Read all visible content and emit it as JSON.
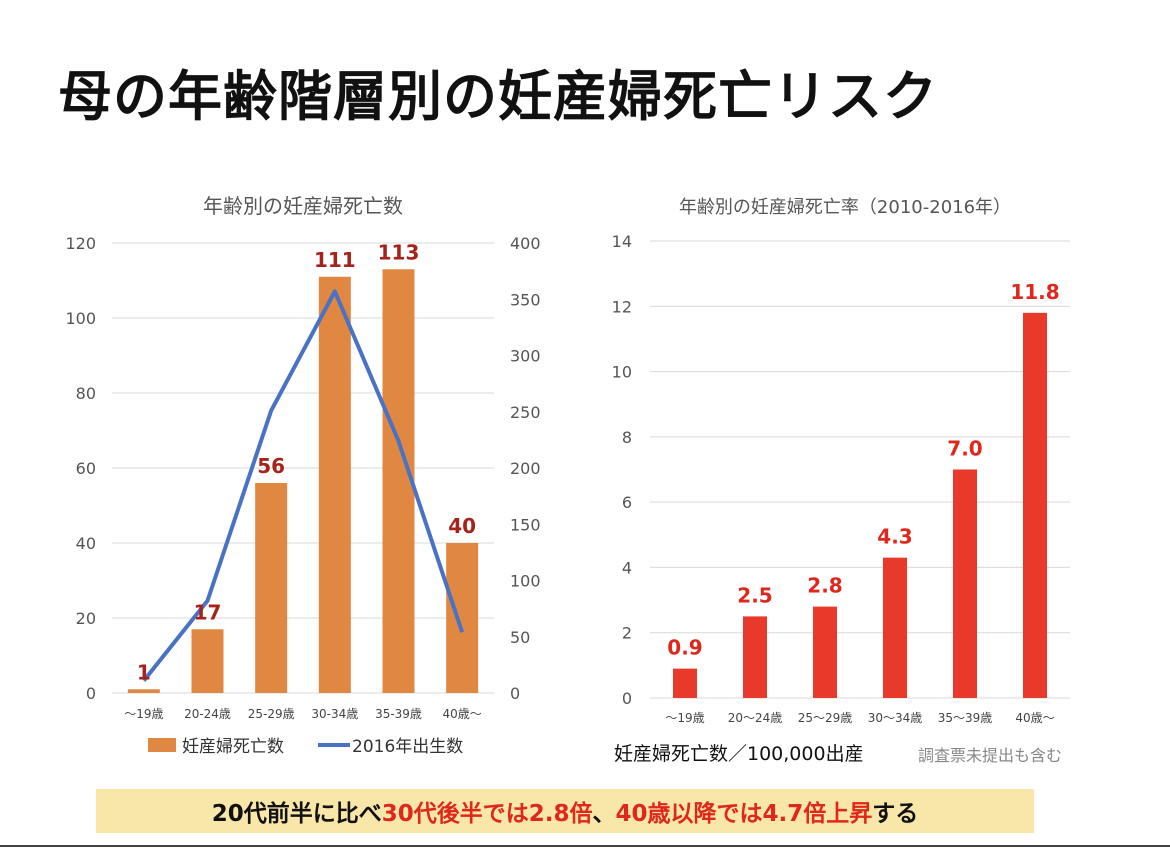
{
  "page": {
    "title": "母の年齢階層別の妊産婦死亡リスク",
    "summary": {
      "part1": "20代前半に比べ",
      "part2": "30代後半では2.8倍",
      "part3": "、",
      "part4": "40歳以降では4.7倍上昇",
      "part5": "する"
    }
  },
  "colors": {
    "bar_left": "#e08841",
    "line_left": "#4a72c4",
    "bar_right": "#e8392a",
    "label_left": "#a5231b",
    "label_right": "#e0271b",
    "summary_bg": "#f8e7a8"
  },
  "chart_data": [
    {
      "type": "bar+line",
      "title": "年齢別の妊産婦死亡数",
      "categories": [
        "〜19歳",
        "20-24歳",
        "25-29歳",
        "30-34歳",
        "35-39歳",
        "40歳〜"
      ],
      "series": [
        {
          "name": "妊産婦死亡数",
          "type": "bar",
          "axis": "left",
          "values": [
            1,
            17,
            56,
            111,
            113,
            40
          ],
          "labels": [
            "1",
            "17",
            "56",
            "111",
            "113",
            "40"
          ]
        },
        {
          "name": "2016年出生数",
          "type": "line",
          "axis": "right",
          "values": [
            11,
            82,
            251,
            357,
            224,
            54
          ]
        }
      ],
      "y_left": {
        "min": 0,
        "max": 120,
        "ticks": [
          "0",
          "20",
          "40",
          "60",
          "80",
          "100",
          "120"
        ]
      },
      "y_right": {
        "min": 0,
        "max": 400,
        "ticks": [
          "0",
          "50",
          "100",
          "150",
          "200",
          "250",
          "300",
          "350",
          "400"
        ]
      },
      "legend": [
        "妊産婦死亡数",
        "2016年出生数"
      ],
      "grid": true
    },
    {
      "type": "bar",
      "title": "年齢別の妊産婦死亡率（2010-2016年）",
      "categories": [
        "〜19歳",
        "20〜24歳",
        "25〜29歳",
        "30〜34歳",
        "35〜39歳",
        "40歳〜"
      ],
      "values": [
        0.9,
        2.5,
        2.8,
        4.3,
        7.0,
        11.8
      ],
      "labels": [
        "0.9",
        "2.5",
        "2.8",
        "4.3",
        "7.0",
        "11.8"
      ],
      "y": {
        "min": 0,
        "max": 14,
        "ticks": [
          "0",
          "2",
          "4",
          "6",
          "8",
          "10",
          "12",
          "14"
        ]
      },
      "unit_note": "妊産婦死亡数／100,000出産",
      "sub_note": "調査票未提出も含む",
      "grid": true
    }
  ]
}
